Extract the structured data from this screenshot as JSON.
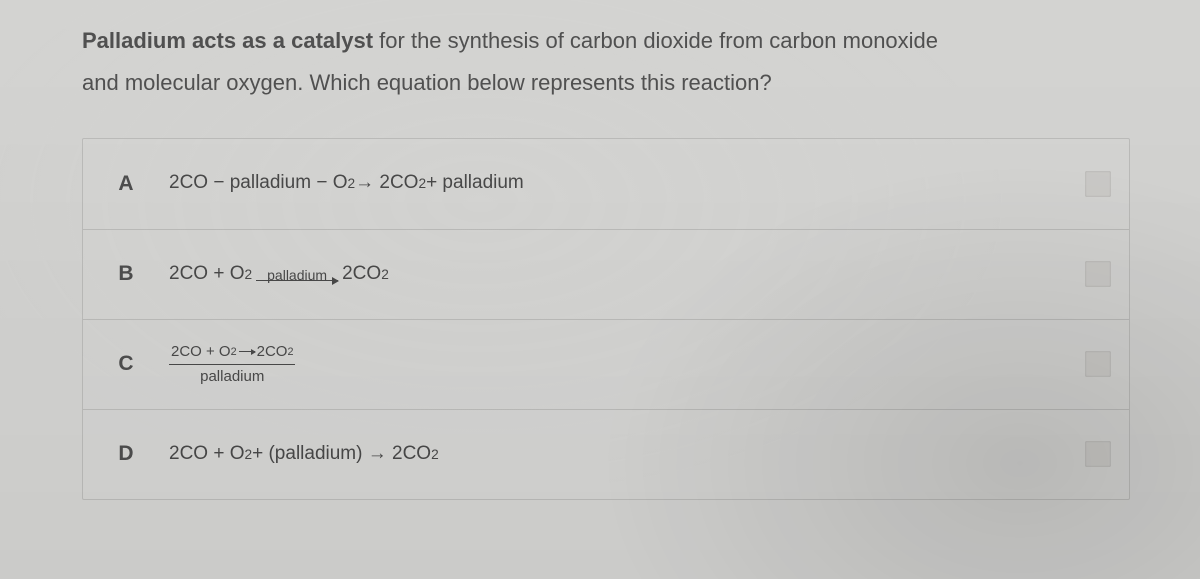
{
  "prompt": {
    "bold": "Palladium acts as a catalyst",
    "rest1": " for the synthesis of carbon dioxide from carbon monoxide",
    "rest2": "and molecular oxygen. Which equation below represents this reaction?"
  },
  "options": {
    "A": {
      "letter": "A",
      "pre": "2CO − palladium − O",
      "sub1": "2",
      "mid": " → 2CO",
      "sub2": "2",
      "post": " + palladium"
    },
    "B": {
      "letter": "B",
      "pre": "2CO + O",
      "sub1": "2",
      "arrow_label": "palladium",
      "post_pre": " 2CO",
      "sub2": "2"
    },
    "C": {
      "letter": "C",
      "top_pre": "2CO + O",
      "top_sub1": "2",
      "top_post_pre": "2CO",
      "top_sub2": "2",
      "bottom": "palladium"
    },
    "D": {
      "letter": "D",
      "pre": "2CO + O",
      "sub1": "2",
      "mid": " + (palladium) → 2CO",
      "sub2": "2"
    }
  }
}
